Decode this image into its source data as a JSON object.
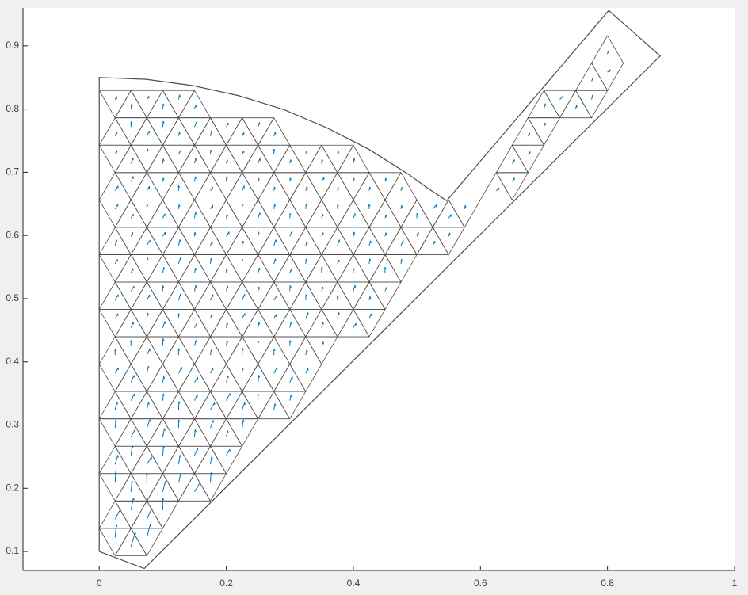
{
  "chart_data": {
    "type": "mesh",
    "boundary": {
      "x": [
        0,
        0,
        0.074,
        0.148,
        0.22,
        0.291,
        0.359,
        0.425,
        0.488,
        0.518,
        0.547,
        0.802,
        0.883,
        0.572,
        0.071,
        0
      ],
      "y": [
        0.1,
        0.85,
        0.847,
        0.837,
        0.821,
        0.799,
        0.77,
        0.736,
        0.696,
        0.674,
        0.655,
        0.956,
        0.884,
        0.574,
        0.073,
        0.1
      ]
    },
    "edge_color": "#4d4d4d",
    "color": "#0072bd",
    "xlim": [
      -0.12,
      1
    ],
    "ylim": [
      0.07,
      0.96
    ],
    "xticks": [
      0,
      0.2,
      0.4,
      0.6,
      0.8,
      1
    ],
    "yticks": [
      0.1,
      0.2,
      0.3,
      0.4,
      0.5,
      0.6,
      0.7,
      0.8,
      0.9
    ]
  }
}
